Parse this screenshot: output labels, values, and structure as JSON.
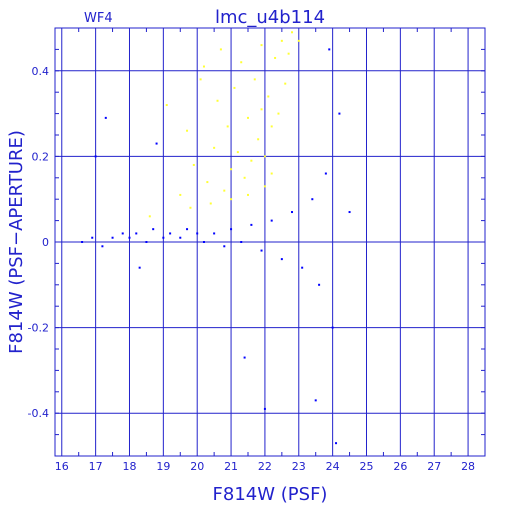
{
  "chart_data": {
    "type": "scatter",
    "title": "lmc_u4b114",
    "subtitle": "WF4",
    "xlabel": "F814W (PSF)",
    "ylabel": "F814W (PSF−APERTURE)",
    "xlim": [
      15.8,
      28.5
    ],
    "ylim": [
      -0.5,
      0.5
    ],
    "x_ticks": [
      16,
      17,
      18,
      19,
      20,
      21,
      22,
      23,
      24,
      25,
      26,
      27,
      28
    ],
    "x_tick_labels": [
      "16",
      "17",
      "18",
      "19",
      "20",
      "21",
      "22",
      "23",
      "24",
      "25",
      "26",
      "27",
      "28"
    ],
    "y_ticks": [
      -0.4,
      -0.2,
      0,
      0.2,
      0.4
    ],
    "y_tick_labels": [
      "-0.4",
      "-0.2",
      "0",
      "0.2",
      "0.4"
    ],
    "grid": true,
    "colors": {
      "axes": "#2222cc",
      "grid": "#2222cc",
      "blue_points": "#0000ff",
      "yellow_points": "#ffff33"
    },
    "series": [
      {
        "color": "#ffff33",
        "points": [
          [
            18.6,
            0.06
          ],
          [
            19.1,
            0.32
          ],
          [
            19.5,
            0.11
          ],
          [
            19.7,
            0.26
          ],
          [
            19.9,
            0.18
          ],
          [
            20.1,
            0.38
          ],
          [
            20.2,
            0.41
          ],
          [
            20.3,
            0.14
          ],
          [
            20.5,
            0.22
          ],
          [
            20.6,
            0.33
          ],
          [
            20.7,
            0.45
          ],
          [
            20.8,
            0.12
          ],
          [
            20.9,
            0.27
          ],
          [
            21.0,
            0.17
          ],
          [
            21.1,
            0.36
          ],
          [
            21.2,
            0.21
          ],
          [
            21.3,
            0.42
          ],
          [
            21.4,
            0.15
          ],
          [
            21.5,
            0.29
          ],
          [
            21.6,
            0.19
          ],
          [
            21.7,
            0.38
          ],
          [
            21.8,
            0.24
          ],
          [
            21.9,
            0.46
          ],
          [
            22.0,
            0.2
          ],
          [
            22.1,
            0.34
          ],
          [
            22.2,
            0.27
          ],
          [
            22.3,
            0.43
          ],
          [
            22.4,
            0.3
          ],
          [
            22.5,
            0.47
          ],
          [
            22.6,
            0.37
          ],
          [
            22.7,
            0.44
          ],
          [
            21.0,
            0.1
          ],
          [
            21.5,
            0.11
          ],
          [
            22.0,
            0.13
          ],
          [
            22.2,
            0.16
          ],
          [
            20.4,
            0.09
          ],
          [
            19.8,
            0.08
          ],
          [
            21.9,
            0.31
          ],
          [
            22.8,
            0.49
          ],
          [
            23.0,
            0.47
          ]
        ]
      },
      {
        "color": "#0000ff",
        "points": [
          [
            16.6,
            0.0
          ],
          [
            16.9,
            0.01
          ],
          [
            17.2,
            -0.01
          ],
          [
            17.5,
            0.01
          ],
          [
            17.8,
            0.02
          ],
          [
            18.0,
            0.01
          ],
          [
            18.2,
            0.02
          ],
          [
            18.5,
            0.0
          ],
          [
            18.7,
            0.03
          ],
          [
            19.0,
            0.01
          ],
          [
            19.2,
            0.02
          ],
          [
            19.5,
            0.01
          ],
          [
            19.7,
            0.03
          ],
          [
            20.0,
            0.02
          ],
          [
            20.2,
            0.0
          ],
          [
            20.5,
            0.02
          ],
          [
            20.8,
            -0.01
          ],
          [
            21.0,
            0.03
          ],
          [
            21.3,
            0.0
          ],
          [
            21.6,
            0.04
          ],
          [
            21.9,
            -0.02
          ],
          [
            22.2,
            0.05
          ],
          [
            22.5,
            -0.04
          ],
          [
            22.8,
            0.07
          ],
          [
            23.1,
            -0.06
          ],
          [
            23.4,
            0.1
          ],
          [
            23.6,
            -0.1
          ],
          [
            23.8,
            0.16
          ],
          [
            24.0,
            -0.2
          ],
          [
            24.2,
            0.3
          ],
          [
            17.0,
            0.2
          ],
          [
            17.3,
            0.29
          ],
          [
            18.8,
            0.23
          ],
          [
            18.3,
            -0.06
          ],
          [
            21.4,
            -0.27
          ],
          [
            22.0,
            -0.39
          ],
          [
            23.5,
            -0.37
          ],
          [
            24.1,
            -0.47
          ],
          [
            23.9,
            0.45
          ],
          [
            24.5,
            0.07
          ]
        ]
      }
    ]
  }
}
